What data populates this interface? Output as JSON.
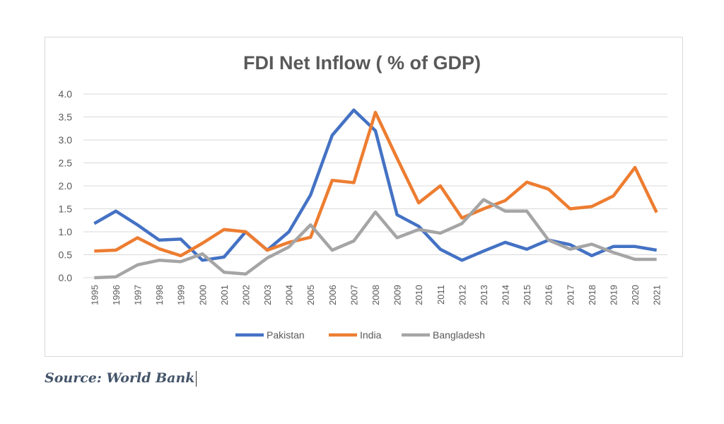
{
  "chart_data": {
    "type": "line",
    "title": "FDI Net Inflow ( % of GDP)",
    "xlabel": "",
    "ylabel": "",
    "ylim": [
      0,
      4
    ],
    "yticks": [
      "0.0",
      "0.5",
      "1.0",
      "1.5",
      "2.0",
      "2.5",
      "3.0",
      "3.5",
      "4.0"
    ],
    "grid": true,
    "legend": "bottom",
    "x": [
      "1995",
      "1996",
      "1997",
      "1998",
      "1999",
      "2000",
      "2001",
      "2002",
      "2003",
      "2004",
      "2005",
      "2006",
      "2007",
      "2008",
      "2009",
      "2010",
      "2011",
      "2012",
      "2013",
      "2014",
      "2015",
      "2016",
      "2017",
      "2018",
      "2019",
      "2020",
      "2021"
    ],
    "series": [
      {
        "name": "Pakistan",
        "color": "#4472c4",
        "values": [
          1.18,
          1.45,
          1.15,
          0.82,
          0.84,
          0.38,
          0.45,
          1.0,
          0.6,
          1.0,
          1.8,
          3.1,
          3.65,
          3.2,
          1.37,
          1.12,
          0.62,
          0.38,
          0.58,
          0.77,
          0.62,
          0.82,
          0.72,
          0.48,
          0.68,
          0.68,
          0.6
        ]
      },
      {
        "name": "India",
        "color": "#ed7d31",
        "values": [
          0.58,
          0.6,
          0.87,
          0.63,
          0.48,
          0.75,
          1.05,
          1.0,
          0.6,
          0.77,
          0.88,
          2.12,
          2.07,
          3.6,
          2.6,
          1.63,
          2.0,
          1.3,
          1.5,
          1.68,
          2.08,
          1.93,
          1.5,
          1.55,
          1.78,
          2.4,
          1.42
        ]
      },
      {
        "name": "Bangladesh",
        "color": "#a5a5a5",
        "values": [
          0.0,
          0.02,
          0.28,
          0.38,
          0.35,
          0.52,
          0.12,
          0.08,
          0.43,
          0.67,
          1.15,
          0.6,
          0.8,
          1.43,
          0.87,
          1.05,
          0.97,
          1.18,
          1.7,
          1.45,
          1.45,
          0.82,
          0.62,
          0.73,
          0.55,
          0.4,
          0.4
        ]
      }
    ]
  },
  "source": "Source: World Bank"
}
